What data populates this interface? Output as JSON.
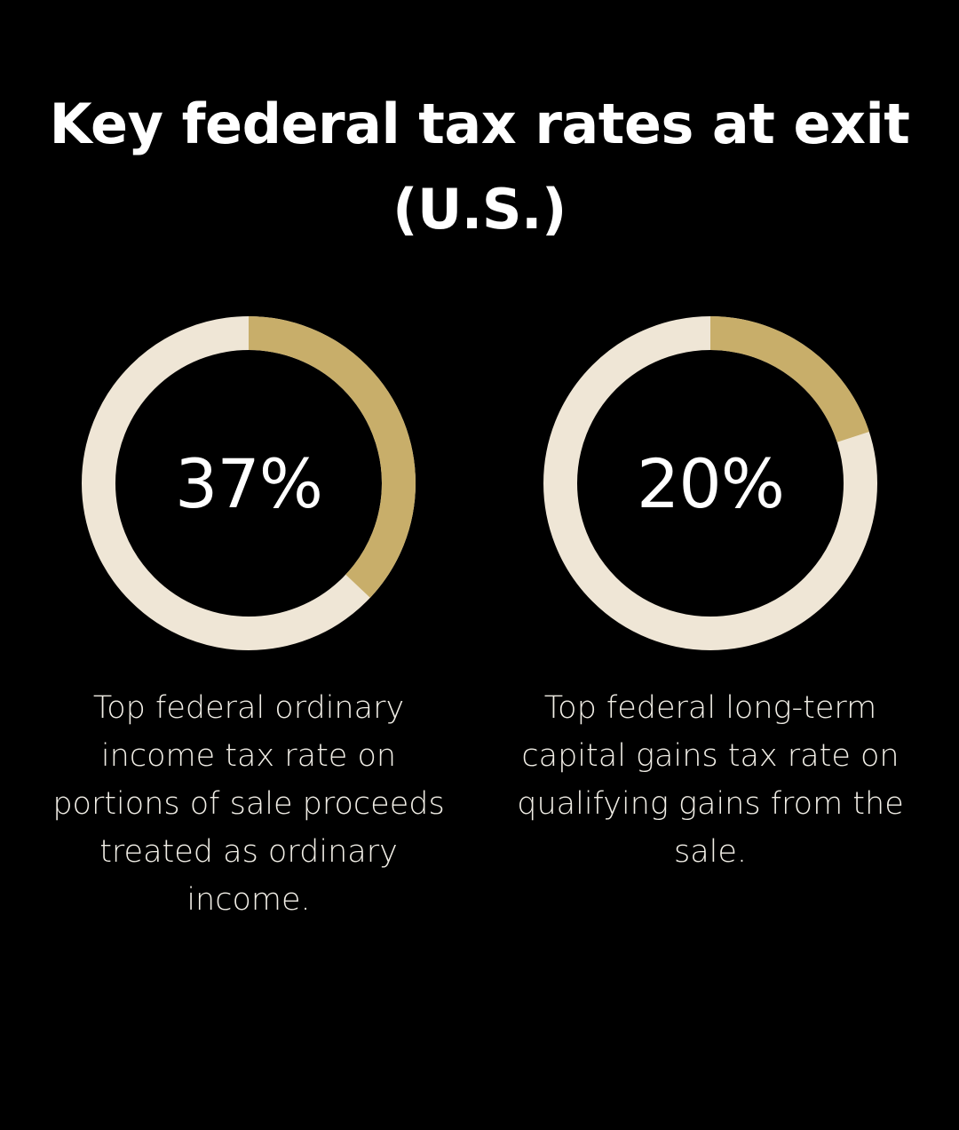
{
  "title": "Key federal tax rates at exit (U.S.)",
  "colors": {
    "background": "#000000",
    "filled": "#c8ae6a",
    "track": "#efe6d6",
    "text": "#ffffff"
  },
  "chart_data": [
    {
      "type": "pie",
      "label": "37%",
      "value": 37,
      "max": 100,
      "caption": "Top federal ordinary income tax rate on portions of sale proceeds treated as ordinary income."
    },
    {
      "type": "pie",
      "label": "20%",
      "value": 20,
      "max": 100,
      "caption": "Top federal long-term capital gains tax rate on qualifying gains from the sale."
    }
  ]
}
